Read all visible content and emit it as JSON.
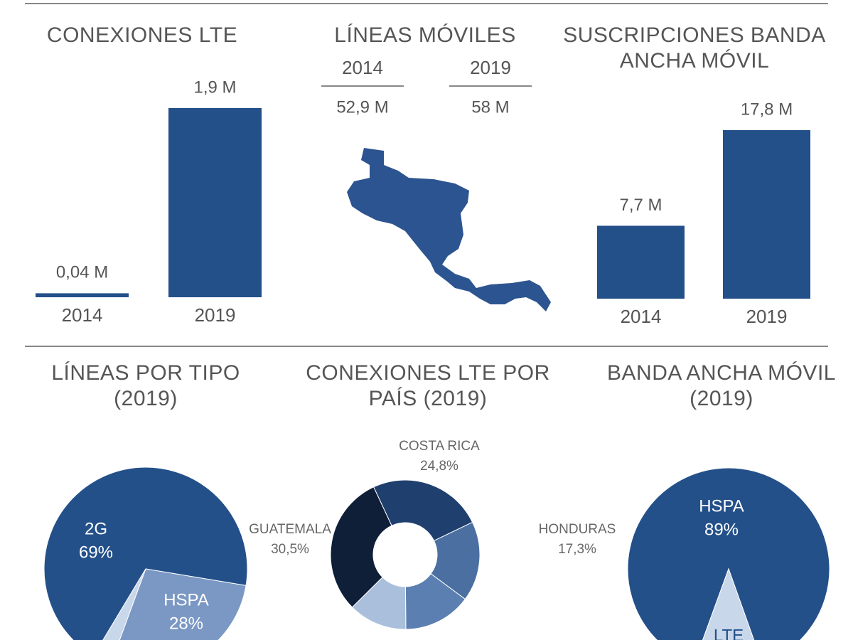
{
  "chart_data": [
    {
      "type": "bar",
      "title": "CONEXIONES LTE",
      "categories": [
        "2014",
        "2019"
      ],
      "values": [
        0.04,
        1.9
      ],
      "value_labels": [
        "0,04 M",
        "1,9 M"
      ],
      "color": "#24508a"
    },
    {
      "type": "stat",
      "title": "LÍNEAS MÓVILES",
      "categories": [
        "2014",
        "2019"
      ],
      "values": [
        52.9,
        58
      ],
      "value_labels": [
        "52,9 M",
        "58 M"
      ],
      "color": "#2c5490"
    },
    {
      "type": "bar",
      "title": "SUSCRIPCIONES BANDA ANCHA MÓVIL",
      "categories": [
        "2014",
        "2019"
      ],
      "values": [
        7.7,
        17.8
      ],
      "value_labels": [
        "7,7 M",
        "17,8 M"
      ],
      "color": "#24508a"
    },
    {
      "type": "pie",
      "title": "LÍNEAS POR TIPO (2019)",
      "categories": [
        "2G",
        "HSPA",
        null
      ],
      "values": [
        69,
        28,
        3
      ],
      "value_labels": [
        "69%",
        "28%",
        null
      ],
      "colors": [
        "#24508a",
        "#7b98c4",
        "#c9d7ea"
      ]
    },
    {
      "type": "donut",
      "title": "CONEXIONES LTE POR PAÍS (2019)",
      "categories": [
        "COSTA RICA",
        "HONDURAS",
        null,
        null,
        "GUATEMALA"
      ],
      "values": [
        24.8,
        17.3,
        14.7,
        12.7,
        30.5
      ],
      "value_labels": [
        "24,8%",
        "17,3%",
        null,
        null,
        "30,5%"
      ],
      "colors": [
        "#1f3f6e",
        "#4a6fa0",
        "#5b7fb0",
        "#a9bfdb",
        "#0f1f38"
      ]
    },
    {
      "type": "pie",
      "title": "BANDA ANCHA MÓVIL (2019)",
      "categories": [
        "HSPA",
        "LTE"
      ],
      "values": [
        89,
        11
      ],
      "value_labels": [
        "89%",
        null
      ],
      "colors": [
        "#24508a",
        "#c9d7ea"
      ]
    }
  ]
}
